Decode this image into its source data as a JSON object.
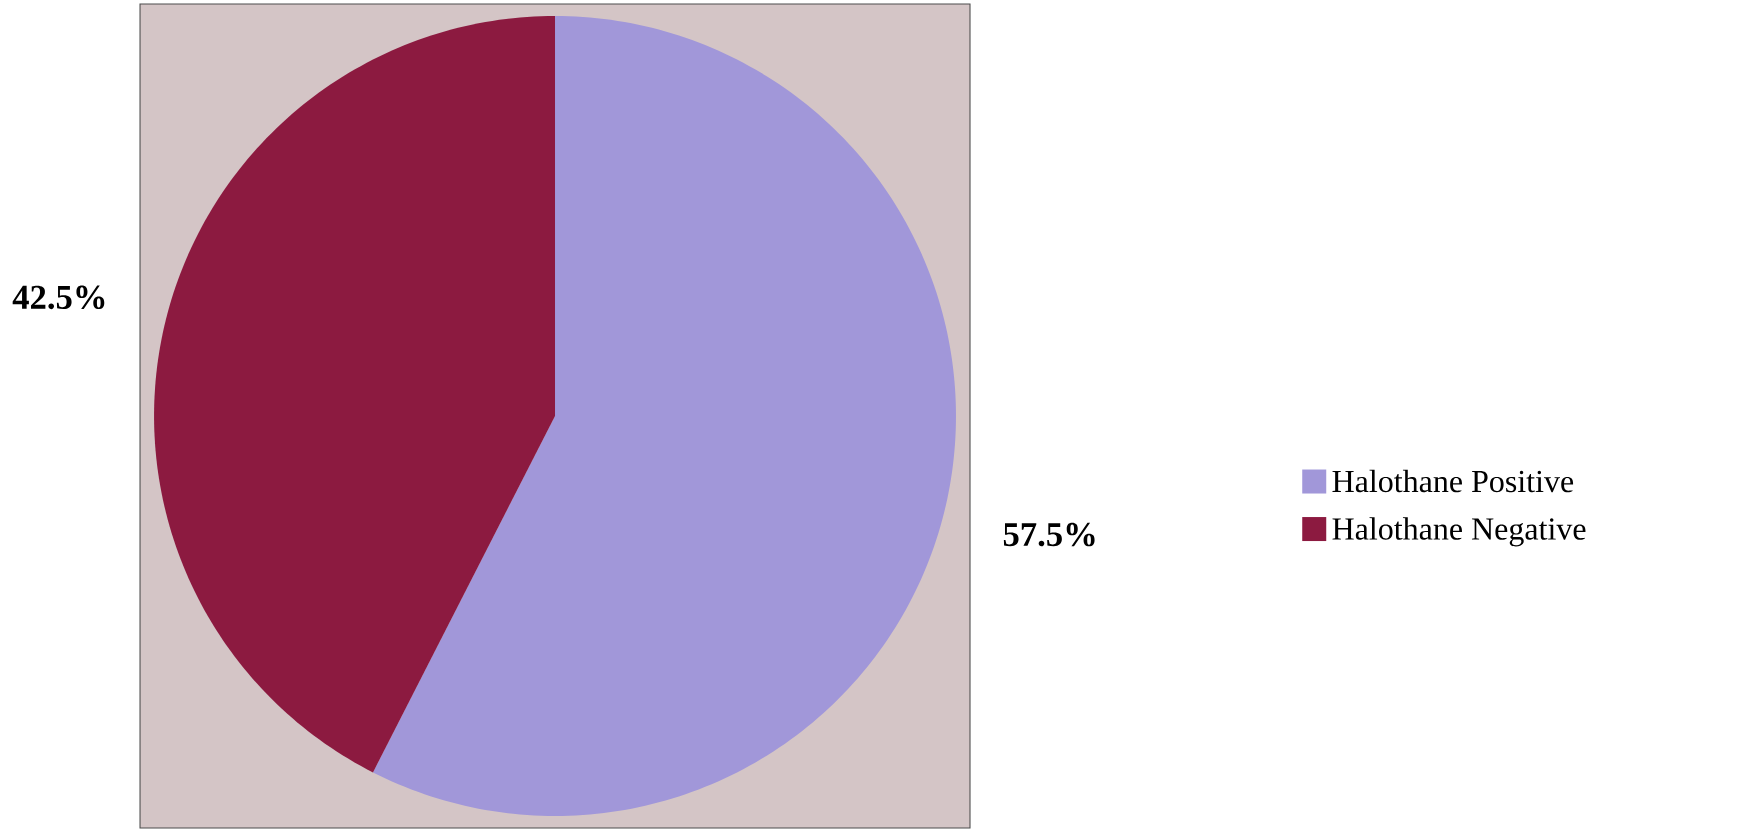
{
  "chart_data": {
    "type": "pie",
    "categories": [
      "Halothane Positive",
      "Halothane Negative"
    ],
    "values": [
      57.5,
      42.5
    ],
    "colors": [
      "#a197d9",
      "#8c1a40"
    ],
    "value_labels": [
      "57.5%",
      "42.5%"
    ],
    "legend": "right"
  }
}
